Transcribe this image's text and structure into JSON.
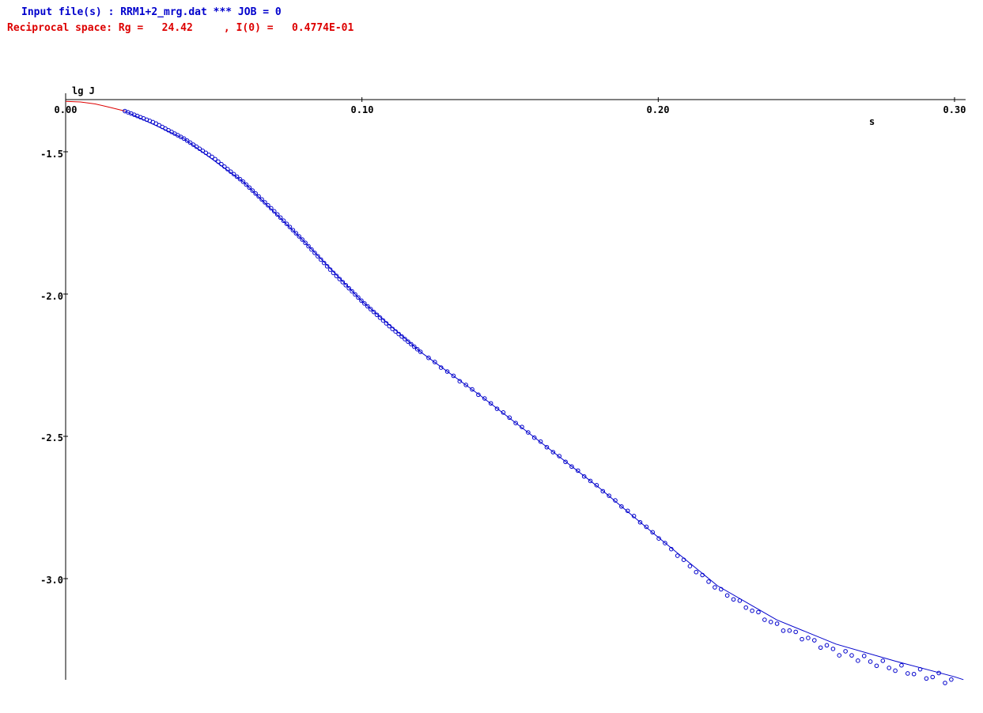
{
  "header": {
    "input_line": "Input file(s) : RRM1+2_mrg.dat *** JOB = 0",
    "recip_line": "Reciprocal space: Rg =   24.42     , I(0) =   0.4774E-01"
  },
  "colors": {
    "data_points": "#0000cc",
    "fit_curve": "#0000cc",
    "extrapolation": "#dd0000",
    "axes": "#000000",
    "header_input": "#0000cc",
    "header_recip": "#dd0000"
  },
  "chart_data": {
    "type": "scatter",
    "title": "",
    "xlabel": "s",
    "ylabel": "lg J",
    "xlim": [
      0.0,
      0.3
    ],
    "ylim": [
      -3.35,
      -1.32
    ],
    "x_ticks": [
      0.0,
      0.1,
      0.2,
      0.3
    ],
    "x_tick_labels": [
      "0.00",
      "0.10",
      "0.20",
      "0.30"
    ],
    "y_ticks": [
      -1.5,
      -2.0,
      -2.5,
      -3.0
    ],
    "y_tick_labels": [
      "-1.5",
      "-2.0",
      "-2.5",
      "-3.0"
    ],
    "grid": false,
    "series": [
      {
        "kind": "scatter",
        "points": [
          [
            0.02,
            -1.357
          ],
          [
            0.03,
            -1.398
          ],
          [
            0.04,
            -1.454
          ],
          [
            0.05,
            -1.522
          ],
          [
            0.06,
            -1.606
          ],
          [
            0.07,
            -1.705
          ],
          [
            0.08,
            -1.81
          ],
          [
            0.09,
            -1.922
          ],
          [
            0.1,
            -2.025
          ],
          [
            0.11,
            -2.12
          ],
          [
            0.12,
            -2.205
          ],
          [
            0.13,
            -2.282
          ],
          [
            0.14,
            -2.357
          ],
          [
            0.15,
            -2.436
          ],
          [
            0.16,
            -2.518
          ],
          [
            0.17,
            -2.599
          ],
          [
            0.18,
            -2.68
          ],
          [
            0.19,
            -2.765
          ],
          [
            0.2,
            -2.855
          ],
          [
            0.21,
            -2.95
          ],
          [
            0.22,
            -3.035
          ],
          [
            0.23,
            -3.1
          ],
          [
            0.24,
            -3.165
          ],
          [
            0.25,
            -3.21
          ],
          [
            0.26,
            -3.255
          ],
          [
            0.27,
            -3.285
          ],
          [
            0.28,
            -3.315
          ],
          [
            0.29,
            -3.338
          ],
          [
            0.3,
            -3.358
          ]
        ]
      },
      {
        "kind": "line",
        "points": [
          [
            0.02,
            -1.357
          ],
          [
            0.04,
            -1.454
          ],
          [
            0.06,
            -1.606
          ],
          [
            0.08,
            -1.81
          ],
          [
            0.1,
            -2.025
          ],
          [
            0.12,
            -2.205
          ],
          [
            0.14,
            -2.357
          ],
          [
            0.16,
            -2.518
          ],
          [
            0.18,
            -2.68
          ],
          [
            0.2,
            -2.855
          ],
          [
            0.22,
            -3.025
          ],
          [
            0.24,
            -3.145
          ],
          [
            0.26,
            -3.23
          ],
          [
            0.28,
            -3.29
          ],
          [
            0.3,
            -3.345
          ],
          [
            0.303,
            -3.355
          ]
        ]
      },
      {
        "kind": "line",
        "points": [
          [
            0.0,
            -1.323
          ],
          [
            0.005,
            -1.325
          ],
          [
            0.01,
            -1.332
          ],
          [
            0.015,
            -1.344
          ],
          [
            0.02,
            -1.357
          ]
        ]
      }
    ]
  }
}
